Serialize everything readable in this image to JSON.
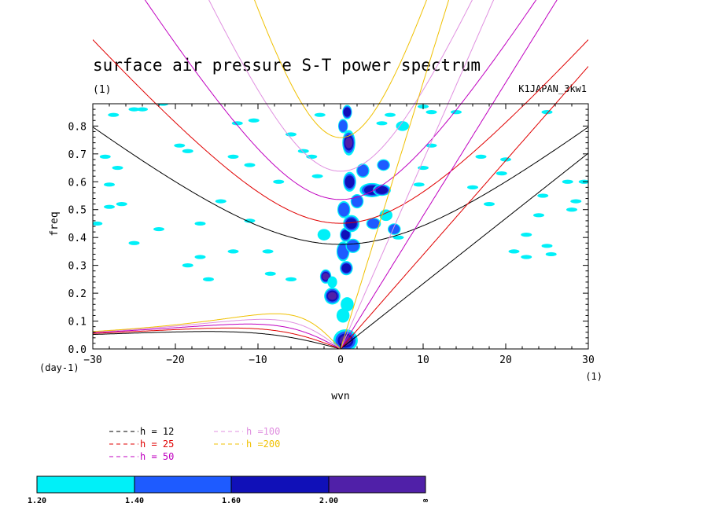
{
  "colors": {
    "h12": "#000000",
    "h25": "#e00000",
    "h50": "#c000c0",
    "h100": "#e090e0",
    "h200": "#f0c000",
    "levels": [
      "#00f0f8",
      "#1e5bff",
      "#1010b8",
      "#5020a8"
    ]
  },
  "chart_data": {
    "type": "heatmap",
    "title": "surface air pressure S-T power spectrum",
    "subtitle": "(1)",
    "label_right": "K1JAPAN_3kw1",
    "xlabel": "wvn",
    "ylabel": "freq",
    "x_unit": "(1)",
    "y_unit": "(day-1)",
    "xlim": [
      -30,
      30
    ],
    "ylim": [
      0,
      0.88
    ],
    "x_ticks": [
      -30,
      -20,
      -10,
      0,
      10,
      20,
      30
    ],
    "x_tick_labels": [
      "−30",
      "−20",
      "−10",
      "0",
      "10",
      "20",
      "30"
    ],
    "y_ticks": [
      0,
      0.1,
      0.2,
      0.3,
      0.4,
      0.5,
      0.6,
      0.7,
      0.8
    ],
    "y_tick_labels": [
      "0.0",
      "0.1",
      "0.2",
      "0.3",
      "0.4",
      "0.5",
      "0.6",
      "0.7",
      "0.8"
    ],
    "levels": [
      1.2,
      1.4,
      1.6,
      2.0
    ],
    "colorbar_labels": [
      "1.20",
      "1.40",
      "1.60",
      "2.00",
      "∞"
    ],
    "curves": [
      {
        "name": "h = 12",
        "color_key": "h12"
      },
      {
        "name": "h = 25",
        "color_key": "h25"
      },
      {
        "name": "h = 50",
        "color_key": "h50"
      },
      {
        "name": "h =100",
        "color_key": "h100"
      },
      {
        "name": "h =200",
        "color_key": "h200"
      }
    ],
    "blobs": [
      [
        0.6,
        0.03,
        1.2,
        0.035,
        4
      ],
      [
        0.3,
        0.12,
        0.5,
        0.02,
        1
      ],
      [
        0.8,
        0.16,
        0.5,
        0.02,
        1
      ],
      [
        -1.0,
        0.19,
        0.7,
        0.025,
        4
      ],
      [
        -1.8,
        0.26,
        0.4,
        0.02,
        4
      ],
      [
        0.7,
        0.29,
        0.5,
        0.02,
        3
      ],
      [
        0.3,
        0.35,
        0.5,
        0.03,
        2
      ],
      [
        1.5,
        0.37,
        0.6,
        0.02,
        2
      ],
      [
        0.6,
        0.41,
        0.4,
        0.02,
        3
      ],
      [
        1.3,
        0.45,
        0.7,
        0.025,
        3
      ],
      [
        0.4,
        0.5,
        0.5,
        0.025,
        2
      ],
      [
        2.0,
        0.53,
        0.5,
        0.02,
        2
      ],
      [
        3.8,
        0.57,
        1.2,
        0.02,
        3
      ],
      [
        1.1,
        0.6,
        0.5,
        0.03,
        3
      ],
      [
        2.7,
        0.64,
        0.5,
        0.02,
        2
      ],
      [
        1.0,
        0.74,
        0.5,
        0.04,
        4
      ],
      [
        0.3,
        0.8,
        0.3,
        0.02,
        2
      ],
      [
        0.8,
        0.85,
        0.3,
        0.02,
        3
      ],
      [
        4.0,
        0.45,
        0.6,
        0.015,
        2
      ],
      [
        5.2,
        0.66,
        0.5,
        0.015,
        2
      ],
      [
        5.5,
        0.48,
        0.5,
        0.015,
        1
      ],
      [
        7.5,
        0.8,
        0.5,
        0.012,
        1
      ],
      [
        6.5,
        0.43,
        0.5,
        0.015,
        2
      ],
      [
        5.0,
        0.57,
        0.8,
        0.015,
        3
      ],
      [
        -2.0,
        0.41,
        0.5,
        0.015,
        1
      ],
      [
        -1.0,
        0.24,
        0.3,
        0.015,
        1
      ]
    ],
    "specks": [
      [
        -28.5,
        0.69
      ],
      [
        -27,
        0.65
      ],
      [
        -28,
        0.51
      ],
      [
        -26.5,
        0.52
      ],
      [
        -24,
        0.86
      ],
      [
        -21.5,
        0.88
      ],
      [
        -19.5,
        0.73
      ],
      [
        -18.5,
        0.71
      ],
      [
        -17,
        0.45
      ],
      [
        -14.5,
        0.53
      ],
      [
        -12.5,
        0.81
      ],
      [
        -10.5,
        0.82
      ],
      [
        -13,
        0.69
      ],
      [
        -11,
        0.66
      ],
      [
        -22,
        0.43
      ],
      [
        -17,
        0.33
      ],
      [
        -18.5,
        0.3
      ],
      [
        -16,
        0.25
      ],
      [
        -13,
        0.35
      ],
      [
        -11,
        0.46
      ],
      [
        -7.5,
        0.6
      ],
      [
        -2.5,
        0.84
      ],
      [
        -3.5,
        0.69
      ],
      [
        -2.8,
        0.62
      ],
      [
        -6,
        0.25
      ],
      [
        -8.5,
        0.27
      ],
      [
        -8.8,
        0.35
      ],
      [
        -4.5,
        0.71
      ],
      [
        -6,
        0.77
      ],
      [
        5,
        0.81
      ],
      [
        6,
        0.84
      ],
      [
        10,
        0.87
      ],
      [
        11,
        0.85
      ],
      [
        14,
        0.85
      ],
      [
        17,
        0.69
      ],
      [
        20,
        0.68
      ],
      [
        18,
        0.52
      ],
      [
        24,
        0.48
      ],
      [
        24.5,
        0.55
      ],
      [
        28,
        0.5
      ],
      [
        27.5,
        0.6
      ],
      [
        29.5,
        0.6
      ],
      [
        22.5,
        0.41
      ],
      [
        21,
        0.35
      ],
      [
        25,
        0.37
      ],
      [
        25.5,
        0.34
      ],
      [
        22.5,
        0.33
      ],
      [
        10,
        0.65
      ],
      [
        11,
        0.73
      ],
      [
        16,
        0.58
      ],
      [
        7,
        0.4
      ],
      [
        9.5,
        0.59
      ],
      [
        25,
        0.85
      ],
      [
        19.5,
        0.63
      ],
      [
        28.5,
        0.53
      ],
      [
        -25,
        0.38
      ],
      [
        -29.5,
        0.45
      ],
      [
        -28,
        0.59
      ],
      [
        -25,
        0.86
      ],
      [
        -27.5,
        0.84
      ]
    ]
  },
  "legend": {
    "items": [
      {
        "label": "h = 12",
        "color_key": "h12"
      },
      {
        "label": "h = 25",
        "color_key": "h25"
      },
      {
        "label": "h = 50",
        "color_key": "h50"
      },
      {
        "label": "h =100",
        "color_key": "h100"
      },
      {
        "label": "h =200",
        "color_key": "h200"
      }
    ]
  }
}
